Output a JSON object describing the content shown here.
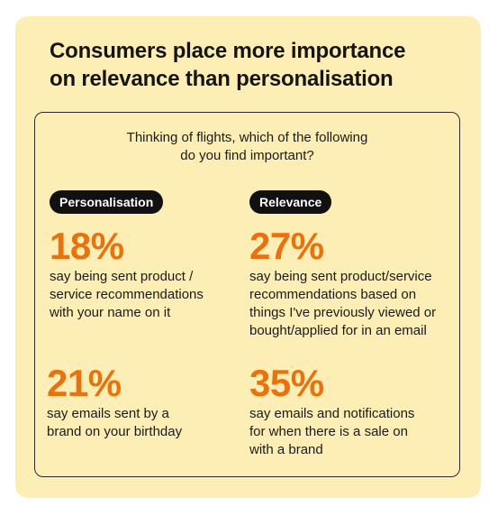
{
  "headline": {
    "line1": "Consumers place more importance",
    "line2": "on relevance than personalisation"
  },
  "question": {
    "line1": "Thinking of flights, which of the following",
    "line2": "do you find important?"
  },
  "colors": {
    "card_background": "#fdeeb6",
    "accent_orange": "#e8730e",
    "pill_background": "#111111"
  },
  "personalisation": {
    "label": "Personalisation",
    "stats": [
      {
        "percent": "18%",
        "lines": [
          "say being sent product /",
          "service recommendations",
          "with your name on it"
        ]
      },
      {
        "percent": "21%",
        "lines": [
          "say emails sent by a",
          "brand on your birthday"
        ]
      }
    ]
  },
  "relevance": {
    "label": "Relevance",
    "stats": [
      {
        "percent": "27%",
        "lines": [
          "say being sent product/service",
          "recommendations based on",
          "things I've previously viewed or",
          "bought/applied for in an email"
        ]
      },
      {
        "percent": "35%",
        "lines": [
          "say emails and notifications",
          "for when there is a sale on",
          "with a brand"
        ]
      }
    ]
  }
}
